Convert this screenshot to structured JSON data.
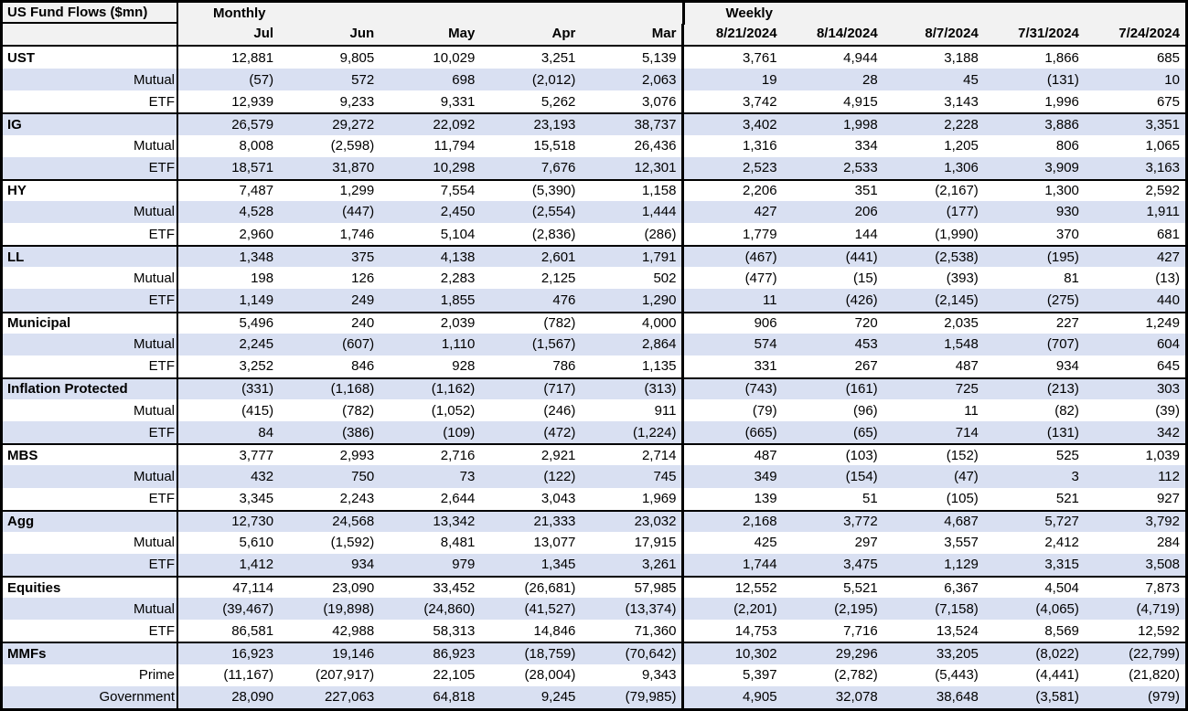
{
  "chart_data": {
    "type": "table",
    "title": "US Fund Flows ($mn)",
    "sections": [
      {
        "label": "Monthly",
        "columns": [
          "Jul",
          "Jun",
          "May",
          "Apr",
          "Mar"
        ]
      },
      {
        "label": "Weekly",
        "columns": [
          "8/21/2024",
          "8/14/2024",
          "8/7/2024",
          "7/31/2024",
          "7/24/2024"
        ]
      }
    ],
    "groups": [
      {
        "name": "UST",
        "rows": [
          {
            "label": "UST",
            "is_group_header": true,
            "monthly": [
              "12,881",
              "9,805",
              "10,029",
              "3,251",
              "5,139"
            ],
            "weekly": [
              "3,761",
              "4,944",
              "3,188",
              "1,866",
              "685"
            ]
          },
          {
            "label": "Mutual",
            "is_group_header": false,
            "monthly": [
              "(57)",
              "572",
              "698",
              "(2,012)",
              "2,063"
            ],
            "weekly": [
              "19",
              "28",
              "45",
              "(131)",
              "10"
            ]
          },
          {
            "label": "ETF",
            "is_group_header": false,
            "monthly": [
              "12,939",
              "9,233",
              "9,331",
              "5,262",
              "3,076"
            ],
            "weekly": [
              "3,742",
              "4,915",
              "3,143",
              "1,996",
              "675"
            ]
          }
        ]
      },
      {
        "name": "IG",
        "rows": [
          {
            "label": "IG",
            "is_group_header": true,
            "monthly": [
              "26,579",
              "29,272",
              "22,092",
              "23,193",
              "38,737"
            ],
            "weekly": [
              "3,402",
              "1,998",
              "2,228",
              "3,886",
              "3,351"
            ]
          },
          {
            "label": "Mutual",
            "is_group_header": false,
            "monthly": [
              "8,008",
              "(2,598)",
              "11,794",
              "15,518",
              "26,436"
            ],
            "weekly": [
              "1,316",
              "334",
              "1,205",
              "806",
              "1,065"
            ]
          },
          {
            "label": "ETF",
            "is_group_header": false,
            "monthly": [
              "18,571",
              "31,870",
              "10,298",
              "7,676",
              "12,301"
            ],
            "weekly": [
              "2,523",
              "2,533",
              "1,306",
              "3,909",
              "3,163"
            ]
          }
        ]
      },
      {
        "name": "HY",
        "rows": [
          {
            "label": "HY",
            "is_group_header": true,
            "monthly": [
              "7,487",
              "1,299",
              "7,554",
              "(5,390)",
              "1,158"
            ],
            "weekly": [
              "2,206",
              "351",
              "(2,167)",
              "1,300",
              "2,592"
            ]
          },
          {
            "label": "Mutual",
            "is_group_header": false,
            "monthly": [
              "4,528",
              "(447)",
              "2,450",
              "(2,554)",
              "1,444"
            ],
            "weekly": [
              "427",
              "206",
              "(177)",
              "930",
              "1,911"
            ]
          },
          {
            "label": "ETF",
            "is_group_header": false,
            "monthly": [
              "2,960",
              "1,746",
              "5,104",
              "(2,836)",
              "(286)"
            ],
            "weekly": [
              "1,779",
              "144",
              "(1,990)",
              "370",
              "681"
            ]
          }
        ]
      },
      {
        "name": "LL",
        "rows": [
          {
            "label": "LL",
            "is_group_header": true,
            "monthly": [
              "1,348",
              "375",
              "4,138",
              "2,601",
              "1,791"
            ],
            "weekly": [
              "(467)",
              "(441)",
              "(2,538)",
              "(195)",
              "427"
            ]
          },
          {
            "label": "Mutual",
            "is_group_header": false,
            "monthly": [
              "198",
              "126",
              "2,283",
              "2,125",
              "502"
            ],
            "weekly": [
              "(477)",
              "(15)",
              "(393)",
              "81",
              "(13)"
            ]
          },
          {
            "label": "ETF",
            "is_group_header": false,
            "monthly": [
              "1,149",
              "249",
              "1,855",
              "476",
              "1,290"
            ],
            "weekly": [
              "11",
              "(426)",
              "(2,145)",
              "(275)",
              "440"
            ]
          }
        ]
      },
      {
        "name": "Municipal",
        "rows": [
          {
            "label": "Municipal",
            "is_group_header": true,
            "monthly": [
              "5,496",
              "240",
              "2,039",
              "(782)",
              "4,000"
            ],
            "weekly": [
              "906",
              "720",
              "2,035",
              "227",
              "1,249"
            ]
          },
          {
            "label": "Mutual",
            "is_group_header": false,
            "monthly": [
              "2,245",
              "(607)",
              "1,110",
              "(1,567)",
              "2,864"
            ],
            "weekly": [
              "574",
              "453",
              "1,548",
              "(707)",
              "604"
            ]
          },
          {
            "label": "ETF",
            "is_group_header": false,
            "monthly": [
              "3,252",
              "846",
              "928",
              "786",
              "1,135"
            ],
            "weekly": [
              "331",
              "267",
              "487",
              "934",
              "645"
            ]
          }
        ]
      },
      {
        "name": "Inflation Protected",
        "rows": [
          {
            "label": "Inflation Protected",
            "is_group_header": true,
            "monthly": [
              "(331)",
              "(1,168)",
              "(1,162)",
              "(717)",
              "(313)"
            ],
            "weekly": [
              "(743)",
              "(161)",
              "725",
              "(213)",
              "303"
            ]
          },
          {
            "label": "Mutual",
            "is_group_header": false,
            "monthly": [
              "(415)",
              "(782)",
              "(1,052)",
              "(246)",
              "911"
            ],
            "weekly": [
              "(79)",
              "(96)",
              "11",
              "(82)",
              "(39)"
            ]
          },
          {
            "label": "ETF",
            "is_group_header": false,
            "monthly": [
              "84",
              "(386)",
              "(109)",
              "(472)",
              "(1,224)"
            ],
            "weekly": [
              "(665)",
              "(65)",
              "714",
              "(131)",
              "342"
            ]
          }
        ]
      },
      {
        "name": "MBS",
        "rows": [
          {
            "label": "MBS",
            "is_group_header": true,
            "monthly": [
              "3,777",
              "2,993",
              "2,716",
              "2,921",
              "2,714"
            ],
            "weekly": [
              "487",
              "(103)",
              "(152)",
              "525",
              "1,039"
            ]
          },
          {
            "label": "Mutual",
            "is_group_header": false,
            "monthly": [
              "432",
              "750",
              "73",
              "(122)",
              "745"
            ],
            "weekly": [
              "349",
              "(154)",
              "(47)",
              "3",
              "112"
            ]
          },
          {
            "label": "ETF",
            "is_group_header": false,
            "monthly": [
              "3,345",
              "2,243",
              "2,644",
              "3,043",
              "1,969"
            ],
            "weekly": [
              "139",
              "51",
              "(105)",
              "521",
              "927"
            ]
          }
        ]
      },
      {
        "name": "Agg",
        "rows": [
          {
            "label": "Agg",
            "is_group_header": true,
            "monthly": [
              "12,730",
              "24,568",
              "13,342",
              "21,333",
              "23,032"
            ],
            "weekly": [
              "2,168",
              "3,772",
              "4,687",
              "5,727",
              "3,792"
            ]
          },
          {
            "label": "Mutual",
            "is_group_header": false,
            "monthly": [
              "5,610",
              "(1,592)",
              "8,481",
              "13,077",
              "17,915"
            ],
            "weekly": [
              "425",
              "297",
              "3,557",
              "2,412",
              "284"
            ]
          },
          {
            "label": "ETF",
            "is_group_header": false,
            "monthly": [
              "1,412",
              "934",
              "979",
              "1,345",
              "3,261"
            ],
            "weekly": [
              "1,744",
              "3,475",
              "1,129",
              "3,315",
              "3,508"
            ]
          }
        ]
      },
      {
        "name": "Equities",
        "rows": [
          {
            "label": "Equities",
            "is_group_header": true,
            "monthly": [
              "47,114",
              "23,090",
              "33,452",
              "(26,681)",
              "57,985"
            ],
            "weekly": [
              "12,552",
              "5,521",
              "6,367",
              "4,504",
              "7,873"
            ]
          },
          {
            "label": "Mutual",
            "is_group_header": false,
            "monthly": [
              "(39,467)",
              "(19,898)",
              "(24,860)",
              "(41,527)",
              "(13,374)"
            ],
            "weekly": [
              "(2,201)",
              "(2,195)",
              "(7,158)",
              "(4,065)",
              "(4,719)"
            ]
          },
          {
            "label": "ETF",
            "is_group_header": false,
            "monthly": [
              "86,581",
              "42,988",
              "58,313",
              "14,846",
              "71,360"
            ],
            "weekly": [
              "14,753",
              "7,716",
              "13,524",
              "8,569",
              "12,592"
            ]
          }
        ]
      },
      {
        "name": "MMFs",
        "rows": [
          {
            "label": "MMFs",
            "is_group_header": true,
            "monthly": [
              "16,923",
              "19,146",
              "86,923",
              "(18,759)",
              "(70,642)"
            ],
            "weekly": [
              "10,302",
              "29,296",
              "33,205",
              "(8,022)",
              "(22,799)"
            ]
          },
          {
            "label": "Prime",
            "is_group_header": false,
            "monthly": [
              "(11,167)",
              "(207,917)",
              "22,105",
              "(28,004)",
              "9,343"
            ],
            "weekly": [
              "5,397",
              "(2,782)",
              "(5,443)",
              "(4,441)",
              "(21,820)"
            ]
          },
          {
            "label": "Government",
            "is_group_header": false,
            "monthly": [
              "28,090",
              "227,063",
              "64,818",
              "9,245",
              "(79,985)"
            ],
            "weekly": [
              "4,905",
              "32,078",
              "38,648",
              "(3,581)",
              "(979)"
            ]
          }
        ]
      }
    ]
  },
  "colors": {
    "alt_row": "#D9E0F2",
    "header_bg": "#F2F2F2",
    "border": "#000000"
  }
}
